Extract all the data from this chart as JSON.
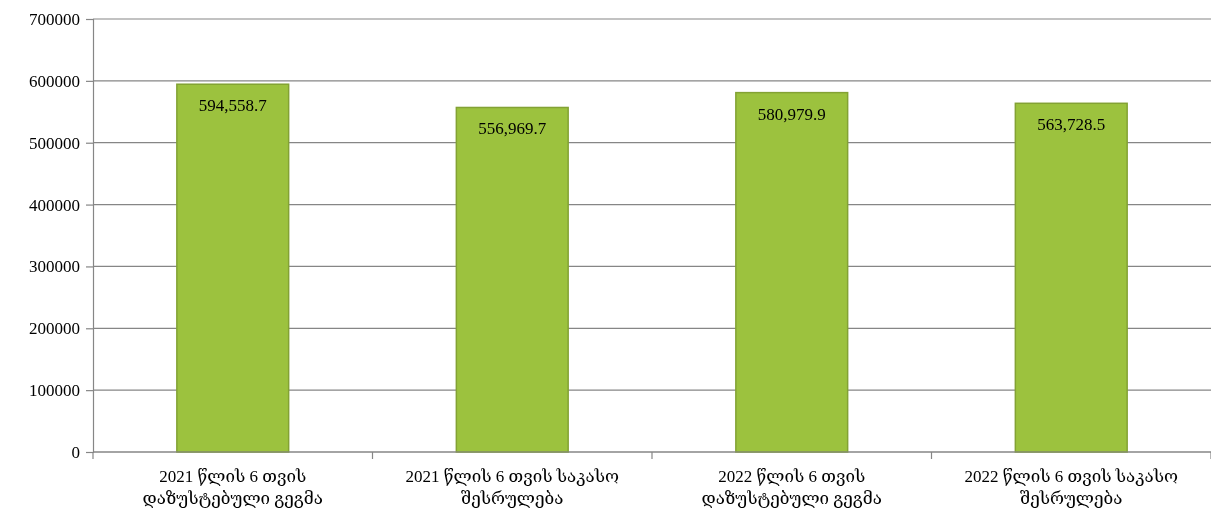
{
  "chart_data": {
    "type": "bar",
    "categories": [
      "2021 წლის 6 თვის დაზუსტებული გეგმა",
      "2021 წლის 6 თვის საკასო შესრულება",
      "2022 წლის 6 თვის დაზუსტებული გეგმა",
      "2022 წლის 6 თვის საკასო შესრულება"
    ],
    "values": [
      594558.7,
      556969.7,
      580979.9,
      563728.5
    ],
    "value_labels": [
      "594,558.7",
      "556,969.7",
      "580,979.9",
      "563,728.5"
    ],
    "color": "#9cc23e",
    "ylim": [
      0,
      700000
    ],
    "yticks": [
      0,
      100000,
      200000,
      300000,
      400000,
      500000,
      600000,
      700000
    ],
    "grid": "y"
  }
}
